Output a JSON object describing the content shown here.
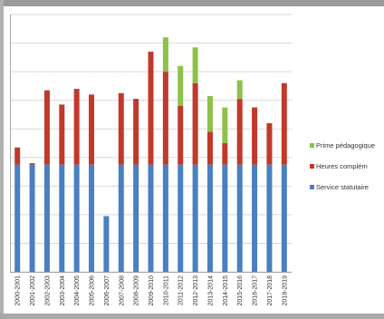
{
  "chart_data": {
    "type": "bar",
    "stacked": true,
    "categories": [
      "2000-2001",
      "2001-2002",
      "2002-2003",
      "2003-2004",
      "2004-2005",
      "2005-2006",
      "2006-2007",
      "2007-2008",
      "2008-2009",
      "2009-2010",
      "2010-2011",
      "2011-2012",
      "2012-2013",
      "2013-2014",
      "2014-2015",
      "2015-2016",
      "2016-2017",
      "2017-2018",
      "2018-2019"
    ],
    "series": [
      {
        "name": "Service statutaire",
        "color": "#4a7fc1",
        "values": [
          375,
          375,
          375,
          375,
          375,
          375,
          195,
          375,
          375,
          375,
          375,
          375,
          375,
          375,
          375,
          375,
          375,
          375,
          375
        ]
      },
      {
        "name": "Heures complémentaires",
        "color": "#c0392b",
        "values": [
          60,
          5,
          260,
          210,
          265,
          245,
          0,
          250,
          230,
          395,
          325,
          205,
          285,
          115,
          75,
          230,
          200,
          145,
          285
        ]
      },
      {
        "name": "Prime pédagogique",
        "color": "#8fc04a",
        "values": [
          0,
          0,
          0,
          0,
          0,
          0,
          0,
          0,
          0,
          0,
          120,
          140,
          125,
          125,
          125,
          65,
          0,
          0,
          0
        ]
      }
    ],
    "ylim": [
      0,
      900
    ],
    "grid": true,
    "legend_position": "right",
    "legend_labels_visible": [
      "Prime pédagogique",
      "Heures complém",
      "Service statutaire"
    ]
  }
}
